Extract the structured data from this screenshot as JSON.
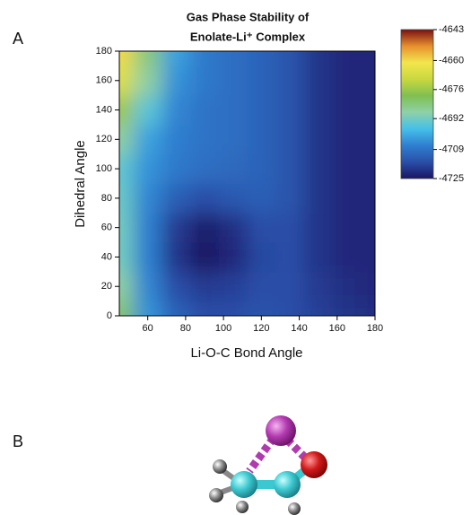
{
  "panel_labels": [
    "A",
    "B"
  ],
  "chart_data": {
    "type": "contour",
    "title": [
      "Gas Phase Stability of",
      "Enolate-Li⁺ Complex"
    ],
    "xlabel": "Li-O-C Bond Angle",
    "ylabel": "Dihedral Angle",
    "xlim": [
      45,
      180
    ],
    "xticks": [
      60,
      80,
      100,
      120,
      140,
      160,
      180
    ],
    "ylim": [
      0,
      180
    ],
    "yticks": [
      0,
      20,
      40,
      60,
      80,
      100,
      120,
      140,
      160,
      180
    ],
    "x": [
      45,
      60,
      75,
      90,
      105,
      120,
      135,
      150,
      165,
      180
    ],
    "y": [
      0,
      20,
      40,
      60,
      80,
      100,
      120,
      140,
      160,
      180
    ],
    "z": [
      [
        -4682,
        -4704,
        -4712,
        -4716,
        -4716,
        -4715,
        -4716,
        -4718,
        -4720,
        -4721
      ],
      [
        -4688,
        -4706,
        -4716,
        -4719,
        -4718,
        -4716,
        -4716,
        -4719,
        -4721,
        -4722
      ],
      [
        -4692,
        -4707,
        -4720,
        -4725,
        -4722,
        -4717,
        -4716,
        -4720,
        -4722,
        -4722
      ],
      [
        -4692,
        -4707,
        -4719,
        -4724,
        -4721,
        -4716,
        -4716,
        -4720,
        -4722,
        -4722
      ],
      [
        -4693,
        -4706,
        -4713,
        -4716,
        -4714,
        -4713,
        -4715,
        -4720,
        -4722,
        -4722
      ],
      [
        -4694,
        -4704,
        -4708,
        -4710,
        -4711,
        -4712,
        -4715,
        -4720,
        -4722,
        -4722
      ],
      [
        -4688,
        -4702,
        -4707,
        -4709,
        -4710,
        -4712,
        -4715,
        -4720,
        -4722,
        -4722
      ],
      [
        -4676,
        -4695,
        -4706,
        -4709,
        -4710,
        -4712,
        -4715,
        -4720,
        -4722,
        -4722
      ],
      [
        -4666,
        -4688,
        -4704,
        -4708,
        -4710,
        -4712,
        -4715,
        -4720,
        -4722,
        -4722
      ],
      [
        -4660,
        -4684,
        -4702,
        -4708,
        -4710,
        -4712,
        -4715,
        -4720,
        -4722,
        -4722
      ]
    ],
    "zlim": [
      -4725,
      -4643
    ],
    "zticks": [
      -4643,
      -4660,
      -4676,
      -4692,
      -4709,
      -4725
    ],
    "colormap": [
      "#1b1464",
      "#2a4fa8",
      "#2f7fd0",
      "#45c0ea",
      "#8fd0a8",
      "#7fbf52",
      "#c8d840",
      "#f2e64c",
      "#e8902e",
      "#7a1010"
    ]
  }
}
